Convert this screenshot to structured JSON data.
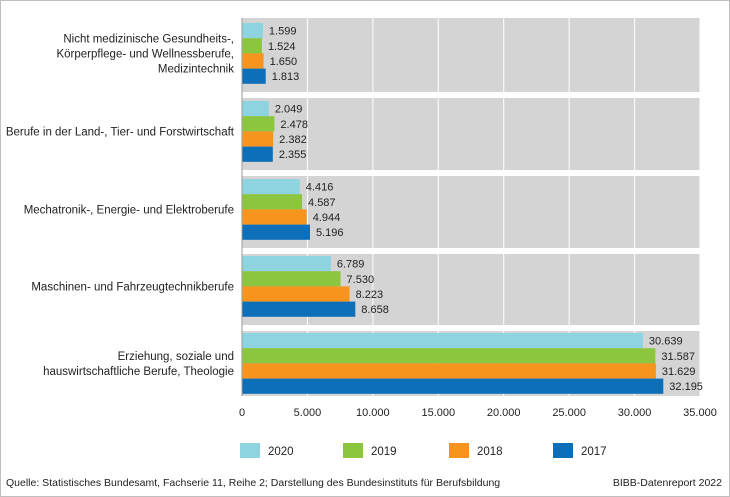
{
  "chart_data": {
    "type": "bar",
    "orientation": "horizontal",
    "categories": [
      [
        "Nicht medizinische Gesundheits-,",
        "Körperpflege- und Wellnessberufe,",
        "Medizintechnik"
      ],
      [
        "Berufe in der Land-, Tier- und Forstwirtschaft"
      ],
      [
        "Mechatronik-, Energie- und Elektroberufe"
      ],
      [
        "Maschinen- und Fahrzeugtechnikberufe"
      ],
      [
        "Erziehung, soziale und",
        "hauswirtschaftliche Berufe, Theologie"
      ]
    ],
    "series": [
      {
        "name": "2020",
        "color": "#8ed3e0",
        "values": [
          1599,
          2049,
          4416,
          6789,
          30639
        ],
        "labels": [
          "1.599",
          "2.049",
          "4.416",
          "6.789",
          "30.639"
        ]
      },
      {
        "name": "2019",
        "color": "#8cc63f",
        "values": [
          1524,
          2478,
          4587,
          7530,
          31587
        ],
        "labels": [
          "1.524",
          "2.478",
          "4.587",
          "7.530",
          "31.587"
        ]
      },
      {
        "name": "2018",
        "color": "#f7941d",
        "values": [
          1650,
          2382,
          4944,
          8223,
          31629
        ],
        "labels": [
          "1.650",
          "2.382",
          "4.944",
          "8.223",
          "31.629"
        ]
      },
      {
        "name": "2017",
        "color": "#0d6fb8",
        "values": [
          1813,
          2355,
          5196,
          8658,
          32195
        ],
        "labels": [
          "1.813",
          "2.355",
          "5.196",
          "8.658",
          "32.195"
        ]
      }
    ],
    "xlim": [
      0,
      35000
    ],
    "xticks": [
      0,
      5000,
      10000,
      15000,
      20000,
      25000,
      30000,
      35000
    ],
    "xtick_labels": [
      "0",
      "5.000",
      "10.000",
      "15.000",
      "20.000",
      "25.000",
      "30.000",
      "35.000"
    ],
    "grid": true,
    "legend_position": "bottom",
    "plot_background": "#d4d4d4"
  },
  "footer": {
    "source": "Quelle: Statistisches Bundesamt, Fachserie 11, Reihe 2; Darstellung des Bundesinstituts für Berufsbildung",
    "credit": "BIBB-Datenreport 2022"
  }
}
